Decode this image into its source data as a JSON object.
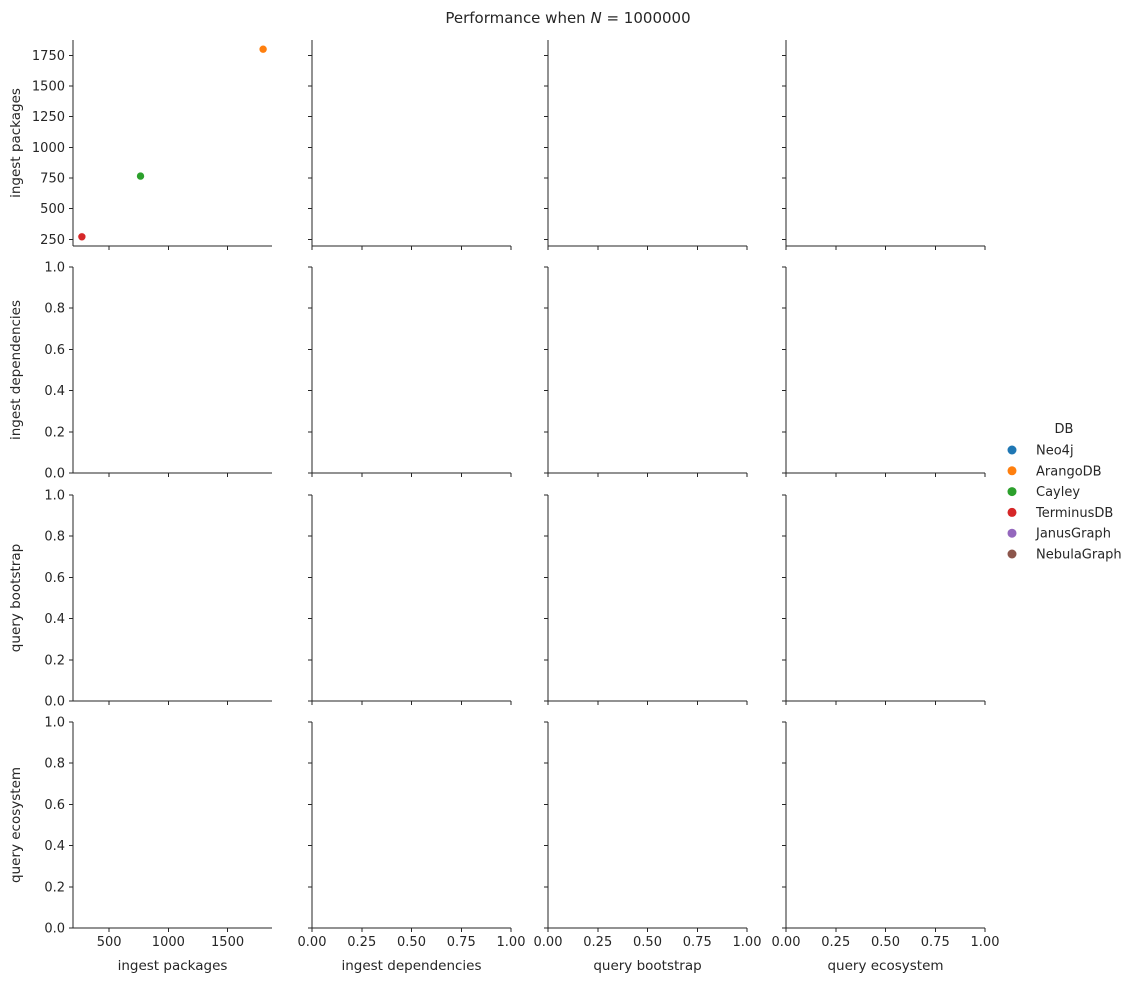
{
  "chart_data": {
    "type": "scatter",
    "title_prefix": "Performance when ",
    "title_italic": "N",
    "title_suffix": " = 1000000",
    "variables": [
      "ingest packages",
      "ingest dependencies",
      "query bootstrap",
      "query ecosystem"
    ],
    "diagonal_ticks": {
      "x_ingest_packages": [
        "500",
        "1000",
        "1500"
      ],
      "y_ingest_packages": [
        "250",
        "500",
        "750",
        "1000",
        "1250",
        "1500",
        "1750"
      ]
    },
    "ranges": {
      "ingest_packages": [
        195,
        1875
      ],
      "empty_axes": [
        0,
        1
      ]
    },
    "empty_ticks": [
      "0.00",
      "0.25",
      "0.50",
      "0.75",
      "1.00"
    ],
    "empty_yticks": [
      "0.0",
      "0.2",
      "0.4",
      "0.6",
      "0.8",
      "1.0"
    ],
    "legend": {
      "title": "DB",
      "entries": [
        {
          "name": "Neo4j",
          "color": "#1f77b4"
        },
        {
          "name": "ArangoDB",
          "color": "#ff7f0e"
        },
        {
          "name": "Cayley",
          "color": "#2ca02c"
        },
        {
          "name": "TerminusDB",
          "color": "#d62728"
        },
        {
          "name": "JanusGraph",
          "color": "#9467bd"
        },
        {
          "name": "NebulaGraph",
          "color": "#8c564b"
        }
      ]
    },
    "points": [
      {
        "db": "ArangoDB",
        "x": 1800,
        "y": 1800,
        "color": "#ff7f0e"
      },
      {
        "db": "Cayley",
        "x": 765,
        "y": 765,
        "color": "#2ca02c"
      },
      {
        "db": "TerminusDB",
        "x": 270,
        "y": 270,
        "color": "#d62728"
      }
    ]
  }
}
